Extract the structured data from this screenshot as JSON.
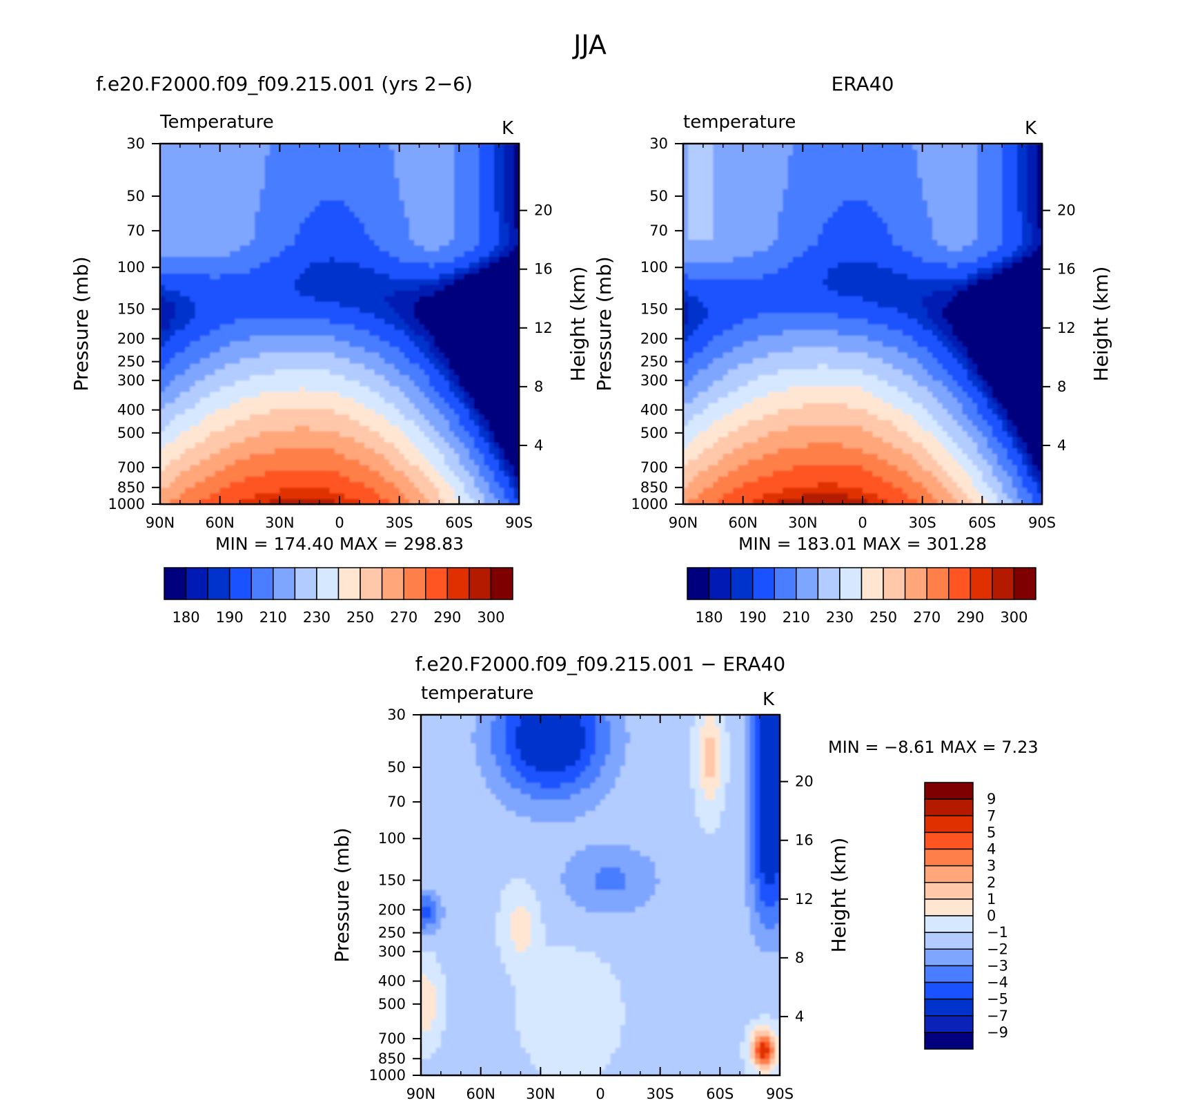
{
  "figure": {
    "title": "JJA"
  },
  "colors": {
    "abs": [
      "#00007f",
      "#001ab3",
      "#0033cc",
      "#1a52ff",
      "#4a7dff",
      "#7fa6ff",
      "#b3ccff",
      "#d6e8ff",
      "#ffe6d3",
      "#ffc8aa",
      "#ffa67a",
      "#ff7f4a",
      "#ff5522",
      "#e03000",
      "#b31a00",
      "#7f0000"
    ],
    "diff": [
      "#00007f",
      "#0a22b8",
      "#0033cc",
      "#1a52ff",
      "#4a7dff",
      "#7fa6ff",
      "#b3ccff",
      "#d6e8ff",
      "#ffe6d3",
      "#ffc8aa",
      "#ffa67a",
      "#ff7f4a",
      "#ff5522",
      "#e03000",
      "#b31a00",
      "#7f0000"
    ]
  },
  "chart_data": [
    {
      "type": "heatmap",
      "title": "f.e20.F2000.f09_f09.215.001 (yrs 2−6)",
      "field_label": "Temperature",
      "units": "K",
      "ylabel": "Pressure (mb)",
      "ylabel_right": "Height (km)",
      "x_ticks": [
        "90N",
        "60N",
        "30N",
        "0",
        "30S",
        "60S",
        "90S"
      ],
      "y_ticks": [
        "30",
        "50",
        "70",
        "100",
        "150",
        "200",
        "250",
        "300",
        "400",
        "500",
        "700",
        "850",
        "1000"
      ],
      "y_ticks_right": [
        "20",
        "16",
        "12",
        "8",
        "4"
      ],
      "xlim": [
        90,
        -90
      ],
      "ylim_mb": [
        1000,
        30
      ],
      "y_scale": "log",
      "stats": {
        "min_label": "MIN =",
        "min": "174.40",
        "max_label": "MAX =",
        "max": "298.83"
      },
      "colorbar": {
        "orientation": "horizontal",
        "labels": [
          "180",
          "190",
          "210",
          "230",
          "250",
          "270",
          "290",
          "300"
        ]
      },
      "dataset": "model"
    },
    {
      "type": "heatmap",
      "title": "ERA40",
      "field_label": "temperature",
      "units": "K",
      "ylabel": "Pressure (mb)",
      "ylabel_right": "Height (km)",
      "x_ticks": [
        "90N",
        "60N",
        "30N",
        "0",
        "30S",
        "60S",
        "90S"
      ],
      "y_ticks": [
        "30",
        "50",
        "70",
        "100",
        "150",
        "200",
        "250",
        "300",
        "400",
        "500",
        "700",
        "850",
        "1000"
      ],
      "y_ticks_right": [
        "20",
        "16",
        "12",
        "8",
        "4"
      ],
      "xlim": [
        90,
        -90
      ],
      "ylim_mb": [
        1000,
        30
      ],
      "y_scale": "log",
      "stats": {
        "min_label": "MIN =",
        "min": "183.01",
        "max_label": "MAX =",
        "max": "301.28"
      },
      "colorbar": {
        "orientation": "horizontal",
        "labels": [
          "180",
          "190",
          "210",
          "230",
          "250",
          "270",
          "290",
          "300"
        ]
      },
      "dataset": "obs"
    },
    {
      "type": "heatmap",
      "title": "f.e20.F2000.f09_f09.215.001 − ERA40",
      "field_label": "temperature",
      "units": "K",
      "ylabel": "Pressure (mb)",
      "ylabel_right": "Height (km)",
      "x_ticks": [
        "90N",
        "60N",
        "30N",
        "0",
        "30S",
        "60S",
        "90S"
      ],
      "y_ticks": [
        "30",
        "50",
        "70",
        "100",
        "150",
        "200",
        "250",
        "300",
        "400",
        "500",
        "700",
        "850",
        "1000"
      ],
      "y_ticks_right": [
        "20",
        "16",
        "12",
        "8",
        "4"
      ],
      "xlim": [
        90,
        -90
      ],
      "ylim_mb": [
        1000,
        30
      ],
      "y_scale": "log",
      "stats": {
        "min_label": "MIN =",
        "min": "−8.61",
        "max_label": "MAX =",
        "max": "7.23"
      },
      "colorbar": {
        "orientation": "vertical",
        "labels": [
          "9",
          "7",
          "5",
          "4",
          "3",
          "2",
          "1",
          "0",
          "−1",
          "−2",
          "−3",
          "−4",
          "−5",
          "−7",
          "−9"
        ]
      },
      "dataset": "diff"
    }
  ]
}
